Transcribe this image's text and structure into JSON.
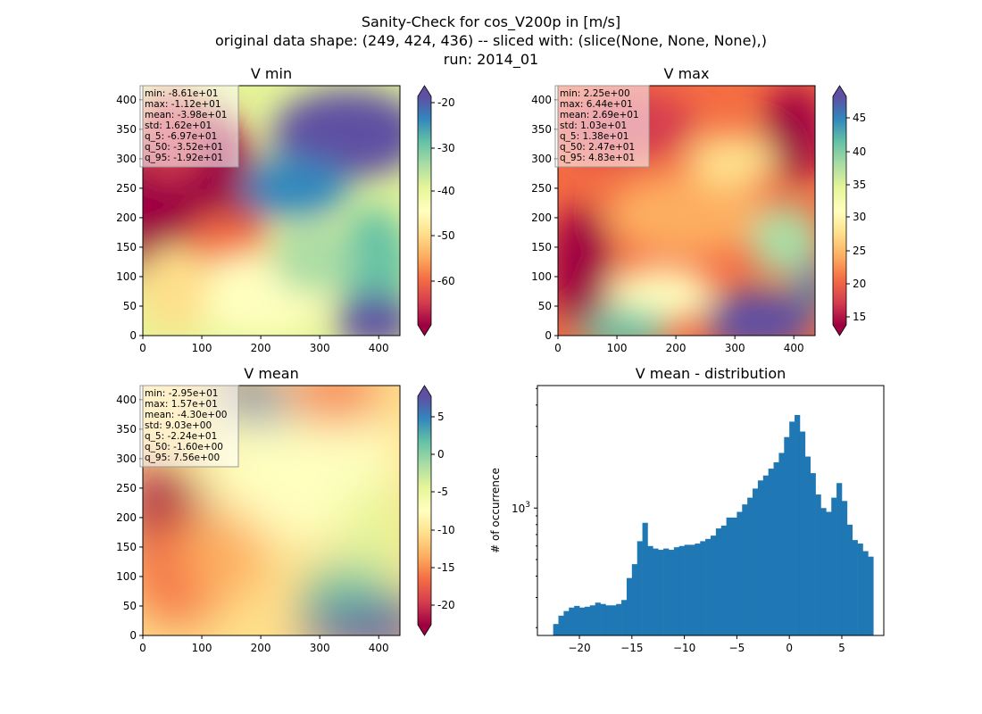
{
  "suptitle": [
    "Sanity-Check for cos_V200p in [m/s]",
    "original data shape: (249, 424, 436) -- sliced with: (slice(None, None, None),)",
    "run: 2014_01"
  ],
  "colors": {
    "spectral": [
      "#9e0142",
      "#d53e4f",
      "#f46d43",
      "#fdae61",
      "#fee08b",
      "#ffffbf",
      "#e6f598",
      "#abdda4",
      "#66c2a5",
      "#3288bd",
      "#5e4fa2"
    ],
    "hist_bar": "#1f77b4",
    "stats_box": "#ffffff"
  },
  "panels": [
    {
      "title": "V min",
      "xticks": [
        "0",
        "100",
        "200",
        "300",
        "400"
      ],
      "yticks": [
        "0",
        "50",
        "100",
        "150",
        "200",
        "250",
        "300",
        "350",
        "400"
      ],
      "stats": [
        "min: -8.61e+01",
        "max: -1.12e+01",
        "mean: -3.98e+01",
        "std: 1.62e+01",
        "q_5: -6.97e+01",
        "q_50: -3.52e+01",
        "q_95: -1.92e+01"
      ],
      "colorbar": {
        "ticks": [
          "-20",
          "-30",
          "-40",
          "-50",
          "-60"
        ],
        "range": [
          -69.7,
          -19.2
        ]
      }
    },
    {
      "title": "V max",
      "xticks": [
        "0",
        "100",
        "200",
        "300",
        "400"
      ],
      "yticks": [
        "0",
        "50",
        "100",
        "150",
        "200",
        "250",
        "300",
        "350",
        "400"
      ],
      "stats": [
        "min: 2.25e+00",
        "max: 6.44e+01",
        "mean: 2.69e+01",
        "std: 1.03e+01",
        "q_5: 1.38e+01",
        "q_50: 2.47e+01",
        "q_95: 4.83e+01"
      ],
      "colorbar": {
        "ticks": [
          "45",
          "40",
          "35",
          "30",
          "25",
          "20",
          "15"
        ],
        "range": [
          13.8,
          48.3
        ]
      }
    },
    {
      "title": "V mean",
      "xticks": [
        "0",
        "100",
        "200",
        "300",
        "400"
      ],
      "yticks": [
        "0",
        "50",
        "100",
        "150",
        "200",
        "250",
        "300",
        "350",
        "400"
      ],
      "stats": [
        "min: -2.95e+01",
        "max: 1.57e+01",
        "mean: -4.30e+00",
        "std: 9.03e+00",
        "q_5: -2.24e+01",
        "q_50: -1.60e+00",
        "q_95: 7.56e+00"
      ],
      "colorbar": {
        "ticks": [
          "5",
          "0",
          "-5",
          "-10",
          "-15",
          "-20"
        ],
        "range": [
          -22.4,
          7.56
        ]
      }
    }
  ],
  "chart_data": {
    "type": "bar",
    "title": "V mean - distribution",
    "xlabel": "",
    "ylabel": "# of occurrence",
    "xticks": [
      "-20",
      "-15",
      "-10",
      "-5",
      "0",
      "5"
    ],
    "yticks": [
      "10^3"
    ],
    "xlim": [
      -24,
      9
    ],
    "ylim": [
      180,
      5200
    ],
    "log_y": true,
    "grid": false,
    "x": [
      -22.5,
      -22.0,
      -21.5,
      -21.0,
      -20.5,
      -20.0,
      -19.5,
      -19.0,
      -18.5,
      -18.0,
      -17.5,
      -17.0,
      -16.5,
      -16.0,
      -15.5,
      -15.0,
      -14.5,
      -14.0,
      -13.5,
      -13.0,
      -12.5,
      -12.0,
      -11.5,
      -11.0,
      -10.5,
      -10.0,
      -9.5,
      -9.0,
      -8.5,
      -8.0,
      -7.5,
      -7.0,
      -6.5,
      -6.0,
      -5.5,
      -5.0,
      -4.5,
      -4.0,
      -3.5,
      -3.0,
      -2.5,
      -2.0,
      -1.5,
      -1.0,
      -0.5,
      0.0,
      0.5,
      1.0,
      1.5,
      2.0,
      2.5,
      3.0,
      3.5,
      4.0,
      4.5,
      5.0,
      5.5,
      6.0,
      6.5,
      7.0,
      7.5
    ],
    "values": [
      210,
      235,
      250,
      262,
      268,
      262,
      265,
      270,
      280,
      275,
      270,
      270,
      275,
      290,
      390,
      470,
      640,
      820,
      600,
      580,
      570,
      580,
      570,
      590,
      600,
      610,
      610,
      620,
      640,
      660,
      690,
      760,
      790,
      880,
      880,
      950,
      1050,
      1150,
      1300,
      1450,
      1550,
      1700,
      1850,
      2100,
      2600,
      3200,
      3500,
      2800,
      2000,
      1600,
      1200,
      1000,
      950,
      1150,
      1400,
      1100,
      800,
      650,
      620,
      560,
      520
    ]
  }
}
